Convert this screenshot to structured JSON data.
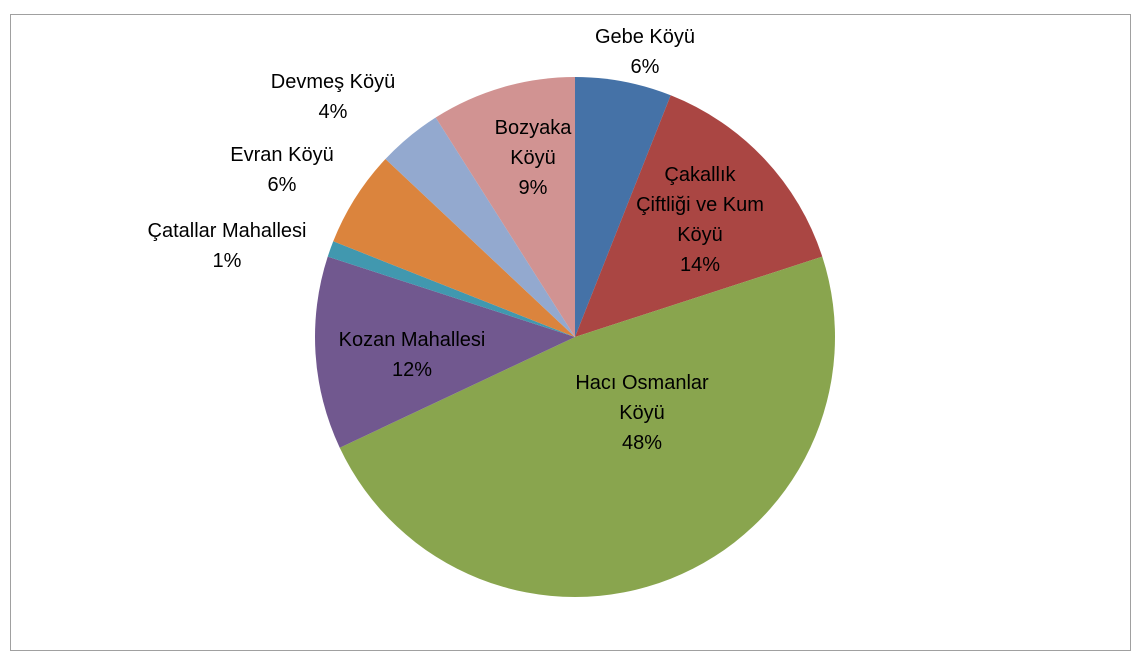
{
  "chart_data": {
    "type": "pie",
    "categories": [
      "Gebe Köyü",
      "Çakallık Çiftliği ve Kum Köyü",
      "Hacı Osmanlar Köyü",
      "Kozan Mahallesi",
      "Çatallar Mahallesi",
      "Evran Köyü",
      "Devmeş Köyü",
      "Bozyaka Köyü"
    ],
    "values": [
      6,
      14,
      48,
      12,
      1,
      6,
      4,
      9
    ],
    "value_labels": [
      "6%",
      "14%",
      "48%",
      "12%",
      "1%",
      "6%",
      "4%",
      "9%"
    ],
    "colors": [
      "#4572a7",
      "#aa4643",
      "#89a54e",
      "#71588f",
      "#4198af",
      "#db843d",
      "#93a9cf",
      "#d19392"
    ]
  }
}
